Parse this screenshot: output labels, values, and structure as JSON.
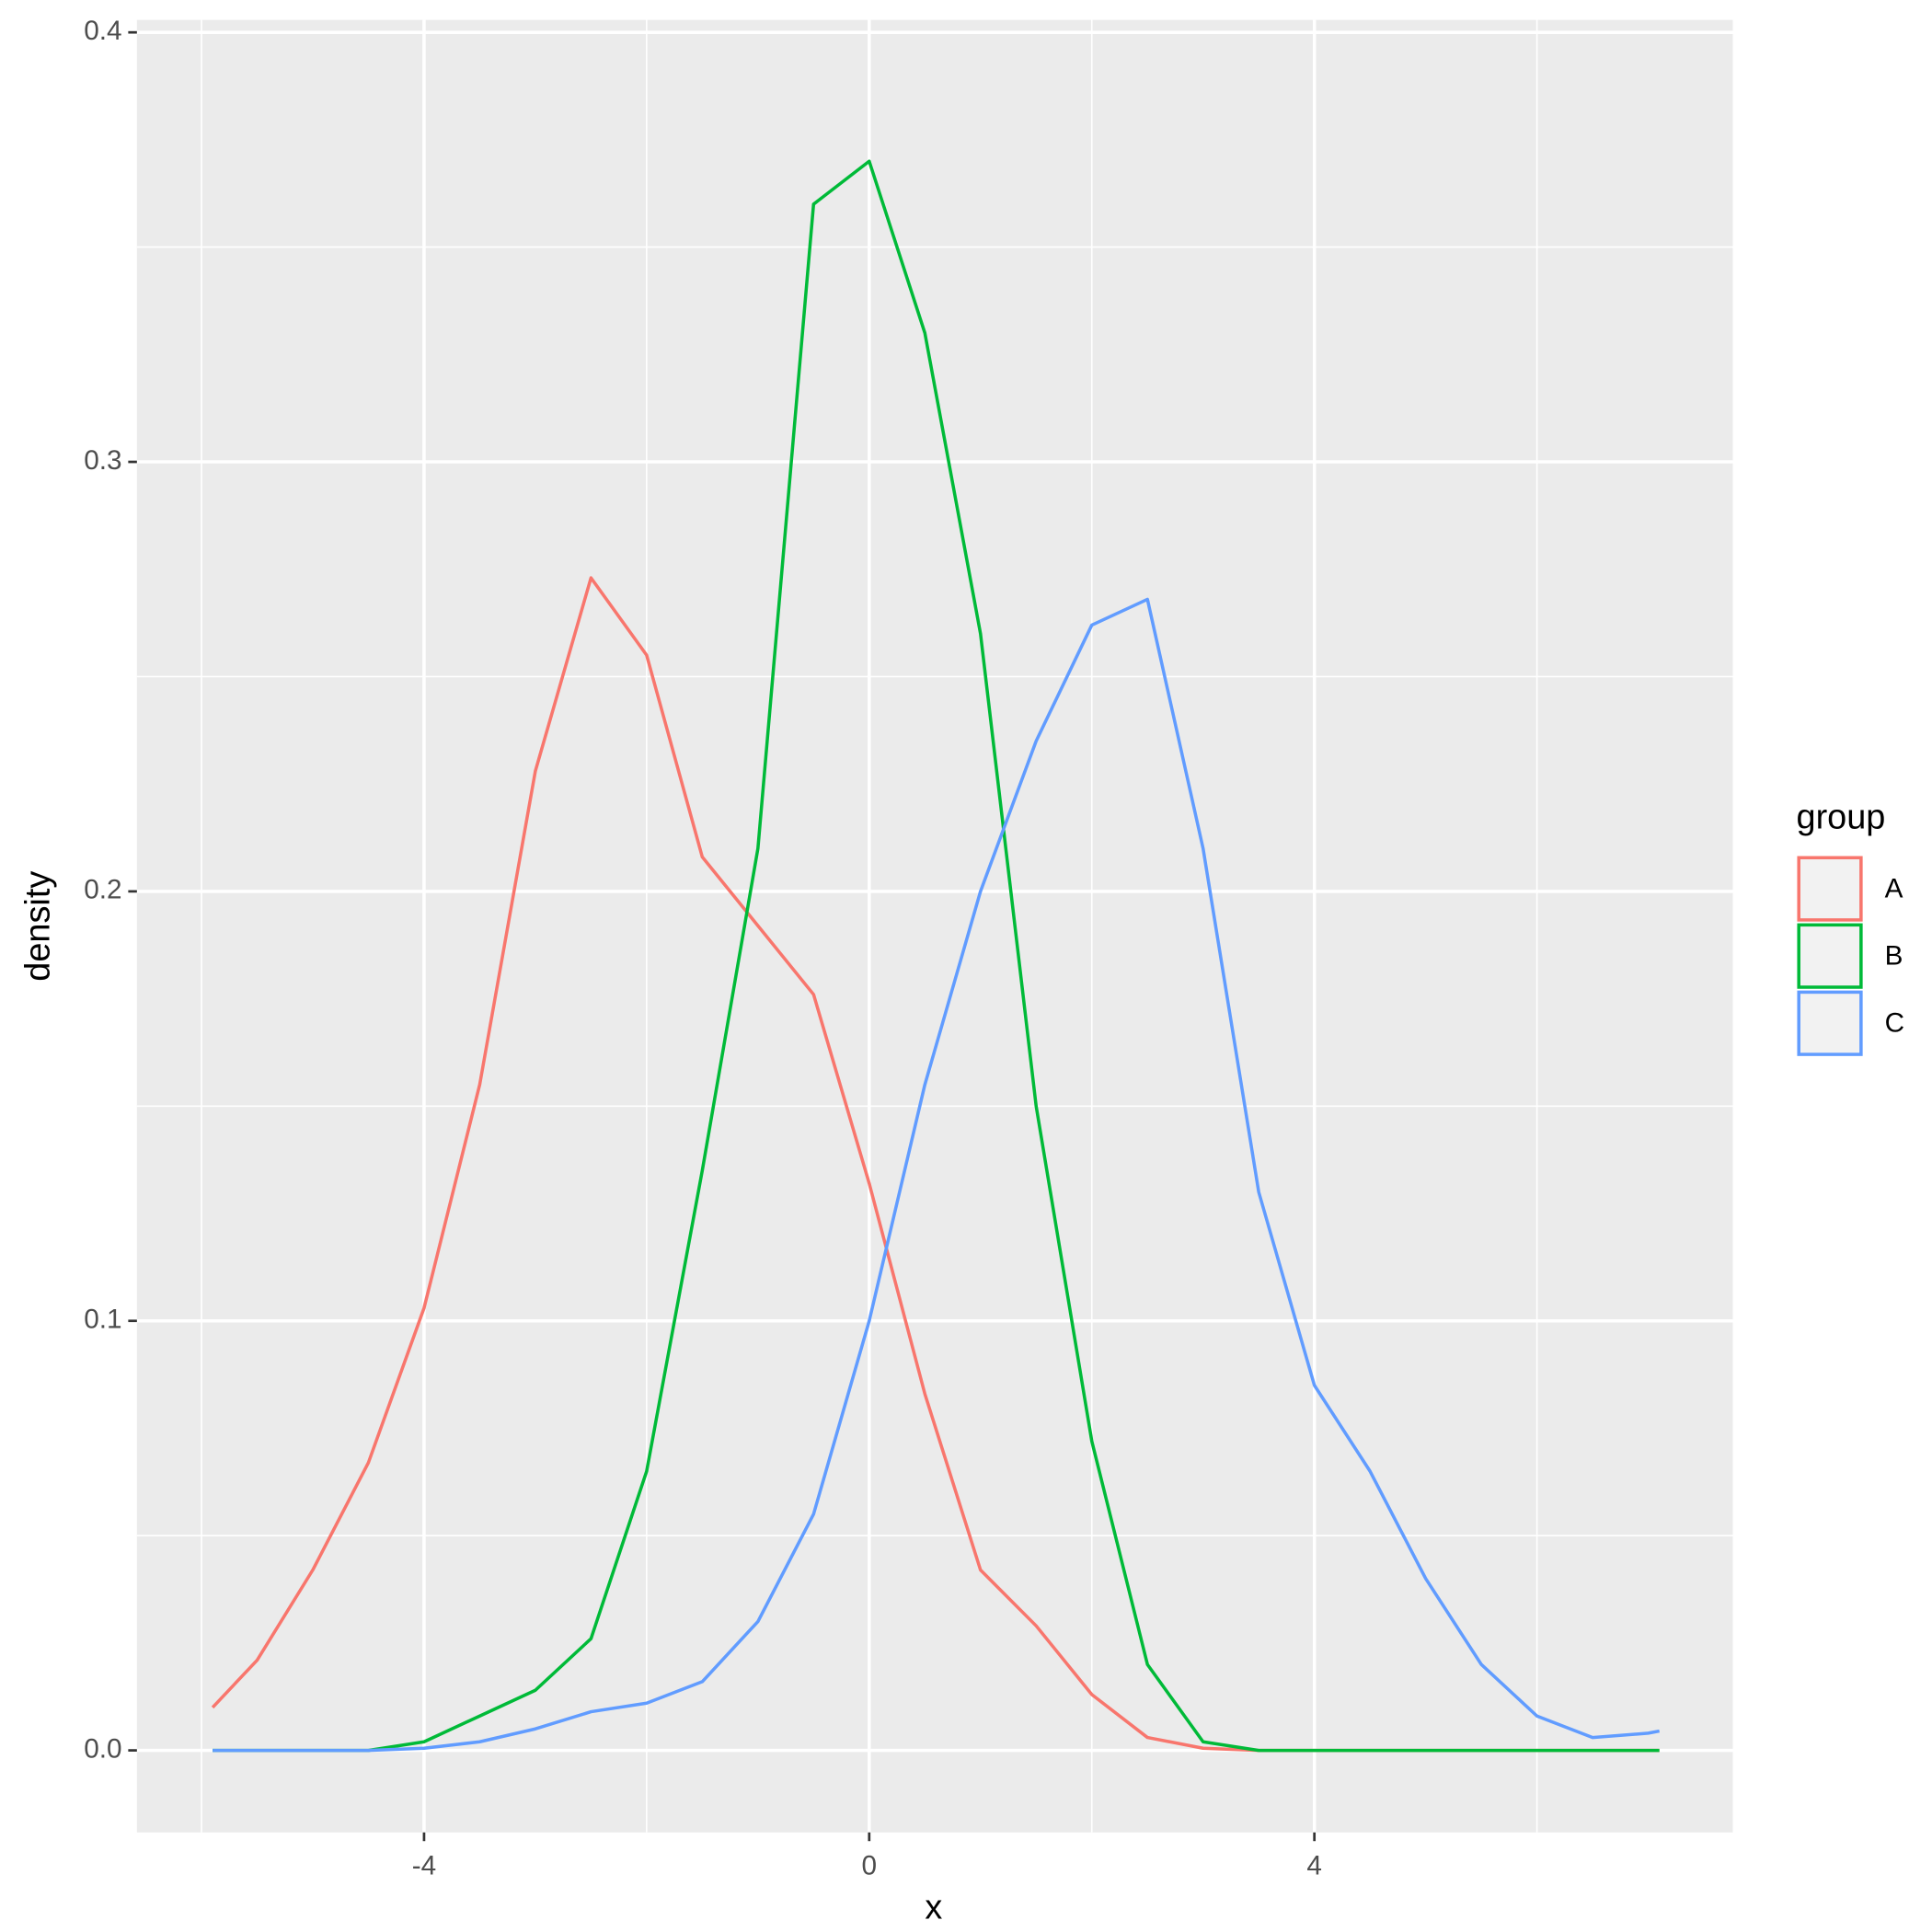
{
  "chart_data": {
    "type": "line",
    "x_label": "x",
    "y_label": "density",
    "legend_title": "group",
    "legend_position": "right",
    "grid": true,
    "x": [
      -5.9,
      -5.5,
      -5,
      -4.5,
      -4,
      -3.5,
      -3,
      -2.5,
      -2,
      -1.5,
      -1,
      -0.5,
      0,
      0.5,
      1,
      1.5,
      2,
      2.5,
      3,
      3.5,
      4,
      4.5,
      5,
      5.5,
      6,
      6.5,
      7,
      7.1
    ],
    "series": [
      {
        "name": "A",
        "color": "#f8766d",
        "values": [
          0.01,
          0.021,
          0.042,
          0.067,
          0.103,
          0.155,
          0.228,
          0.273,
          0.255,
          0.208,
          0.192,
          0.176,
          0.132,
          0.083,
          0.042,
          0.029,
          0.013,
          0.003,
          0.0005,
          0,
          0,
          0,
          0,
          0,
          0,
          0,
          0,
          0
        ]
      },
      {
        "name": "B",
        "color": "#00ba38",
        "values": [
          0,
          0,
          0,
          0,
          0.002,
          0.008,
          0.014,
          0.026,
          0.065,
          0.135,
          0.21,
          0.36,
          0.37,
          0.33,
          0.26,
          0.15,
          0.072,
          0.02,
          0.002,
          0,
          0,
          0,
          0,
          0,
          0,
          0,
          0,
          0
        ]
      },
      {
        "name": "C",
        "color": "#619cff",
        "values": [
          0,
          0,
          0,
          0,
          0.0005,
          0.002,
          0.005,
          0.009,
          0.011,
          0.016,
          0.03,
          0.055,
          0.1,
          0.155,
          0.2,
          0.235,
          0.262,
          0.268,
          0.21,
          0.13,
          0.085,
          0.065,
          0.04,
          0.02,
          0.008,
          0.003,
          0.004,
          0.0045
        ]
      }
    ],
    "xlim": [
      -6.58,
      7.76
    ],
    "ylim": [
      -0.0191,
      0.4029
    ],
    "xticks": [
      -4,
      0,
      4
    ],
    "yticks": [
      {
        "value": 0,
        "label": "0.0"
      },
      0.1,
      0.2,
      0.3,
      0.4
    ]
  }
}
